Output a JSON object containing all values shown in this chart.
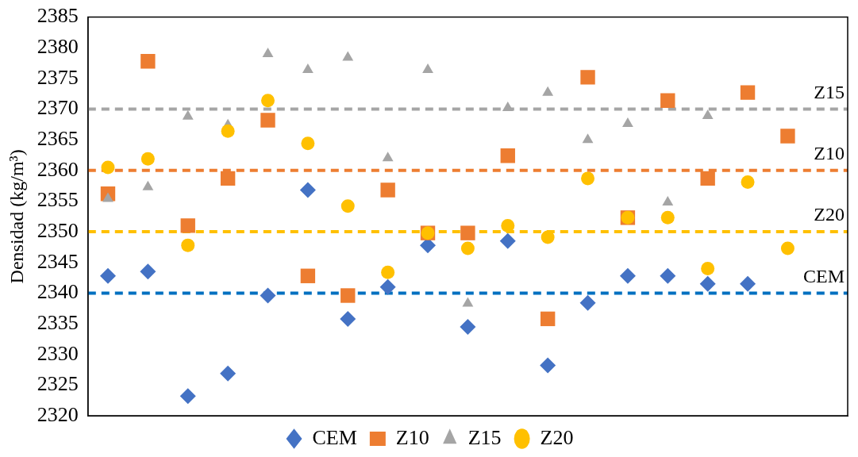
{
  "chart_data": {
    "type": "scatter",
    "ylabel": "Densidad (kg/m³)",
    "categories": [
      null,
      null,
      null,
      null,
      null,
      null,
      null,
      null,
      null,
      null,
      null,
      null,
      null,
      null,
      null,
      null,
      null,
      null,
      null
    ],
    "ylim": [
      2320,
      2385
    ],
    "yticks": [
      2320,
      2325,
      2330,
      2335,
      2340,
      2345,
      2350,
      2355,
      2360,
      2365,
      2370,
      2375,
      2380,
      2385
    ],
    "tick_labels": "y",
    "grid": false,
    "legend": "bottom",
    "series": [
      {
        "name": "CEM",
        "color": "#4472c4",
        "marker": "diamond",
        "values": [
          2342.8,
          2343.5,
          2323.2,
          2326.9,
          2339.6,
          2356.8,
          2335.8,
          2341,
          2347.8,
          2334.5,
          2348.5,
          2328.2,
          2338.4,
          2342.8,
          2342.8,
          2341.5,
          2341.5,
          null,
          null
        ]
      },
      {
        "name": "Z10",
        "color": "#ed7d31",
        "marker": "square",
        "values": [
          2356.2,
          2377.8,
          2351,
          2358.7,
          2368.2,
          2342.8,
          2339.6,
          2356.8,
          2349.8,
          2349.8,
          2362.4,
          2335.8,
          2375.2,
          2352.3,
          2371.4,
          2358.7,
          2372.7,
          2365.6,
          null
        ]
      },
      {
        "name": "Z15",
        "color": "#a5a5a5",
        "marker": "triangle",
        "values": [
          2355.4,
          2357.3,
          2368.8,
          2367.4,
          2379,
          2376.4,
          2378.4,
          2362,
          2376.4,
          2338.3,
          2370.2,
          2372.7,
          2365,
          2367.6,
          2354.8,
          2368.9,
          null,
          null,
          null
        ]
      },
      {
        "name": "Z20",
        "color": "#ffc000",
        "marker": "circle",
        "values": [
          2360.5,
          2361.9,
          2347.8,
          2366.4,
          2371.4,
          2364.4,
          2354.2,
          2343.4,
          2349.8,
          2347.3,
          2351,
          2349.1,
          2358.7,
          2352.3,
          2352.3,
          2344,
          2358.1,
          2347.3,
          null
        ]
      }
    ],
    "ref_lines": [
      {
        "axis": "y",
        "value": 2370,
        "label": "Z15",
        "color": "#a5a5a5",
        "line_style": "dashed"
      },
      {
        "axis": "y",
        "value": 2360,
        "label": "Z10",
        "color": "#ed7d31",
        "line_style": "dashed"
      },
      {
        "axis": "y",
        "value": 2350,
        "label": "Z20",
        "color": "#ffc000",
        "line_style": "dashed"
      },
      {
        "axis": "y",
        "value": 2340,
        "label": "CEM",
        "color": "#0070c0",
        "line_style": "dashed"
      }
    ]
  }
}
